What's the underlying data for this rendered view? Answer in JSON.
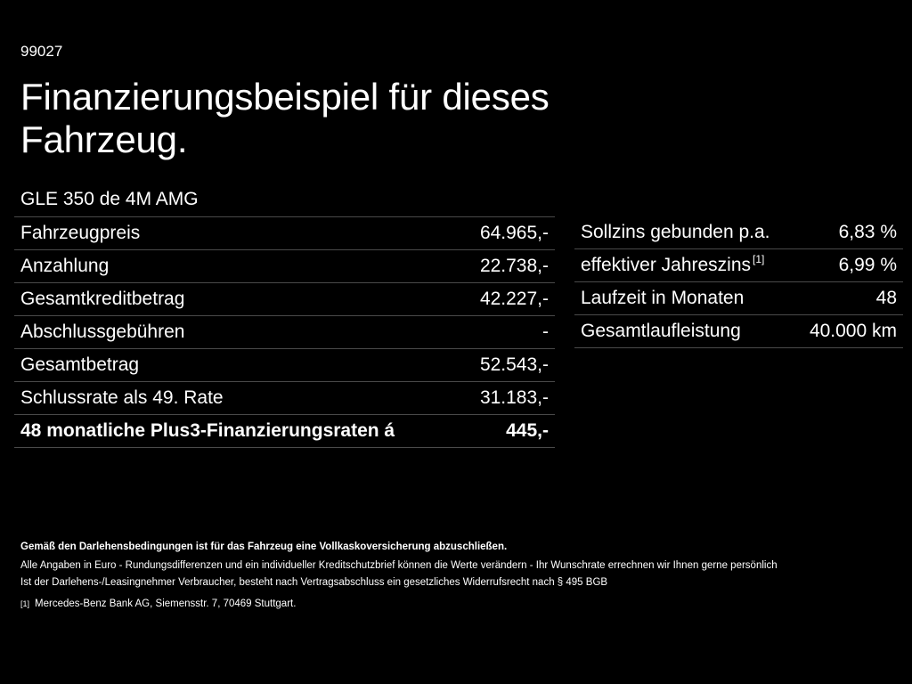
{
  "header": {
    "code": "99027",
    "title": "Finanzierungsbeispiel für dieses Fahrzeug."
  },
  "model": "GLE 350 de 4M AMG",
  "left_table": {
    "rows": [
      {
        "label": "Fahrzeugpreis",
        "value": "64.965,-"
      },
      {
        "label": "Anzahlung",
        "value": "22.738,-"
      },
      {
        "label": "Gesamtkreditbetrag",
        "value": "42.227,-"
      },
      {
        "label": "Abschlussgebühren",
        "value": "-"
      },
      {
        "label": "Gesamtbetrag",
        "value": "52.543,-"
      },
      {
        "label": "Schlussrate als 49. Rate",
        "value": "31.183,-"
      },
      {
        "label": "48 monatliche Plus3-Finanzierungsraten á",
        "value": "445,-"
      }
    ]
  },
  "right_table": {
    "rows": [
      {
        "label": "Sollzins gebunden p.a.",
        "value": "6,83 %"
      },
      {
        "label": "effektiver Jahreszins",
        "sup": "[1]",
        "value": "6,99 %"
      },
      {
        "label": "Laufzeit in Monaten",
        "value": "48"
      },
      {
        "label": "Gesamtlaufleistung",
        "value": "40.000 km"
      }
    ]
  },
  "notes": {
    "line1": "Gemäß den Darlehensbedingungen ist für das Fahrzeug eine Vollkaskoversicherung abzuschließen.",
    "line2": "Alle Angaben in Euro - Rundungsdifferenzen und ein individueller Kreditschutzbrief können die Werte verändern - Ihr Wunschrate errechnen wir Ihnen gerne persönlich",
    "line3": "Ist der Darlehens-/Leasingnehmer Verbraucher, besteht nach Vertragsabschluss ein gesetzliches Widerrufsrecht nach § 495 BGB"
  },
  "footnote": {
    "mark": "[1]",
    "text": "Mercedes-Benz Bank AG, Siemensstr. 7, 70469 Stuttgart."
  }
}
